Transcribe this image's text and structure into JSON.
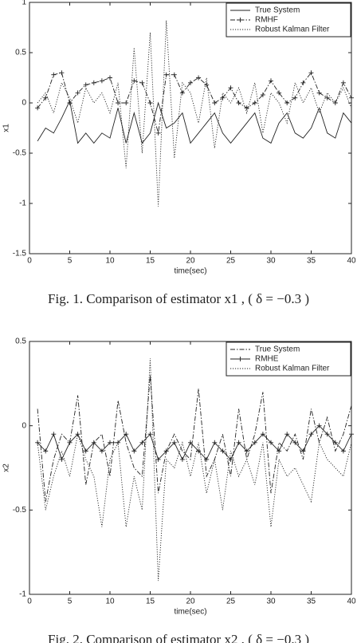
{
  "chart_data": [
    {
      "type": "line",
      "xlabel": "time(sec)",
      "ylabel": "x1",
      "caption": "Fig. 1. Comparison of estimator x1 , ( δ = −0.3 )",
      "xlim": [
        0,
        40
      ],
      "xticks": [
        0,
        5,
        10,
        15,
        20,
        25,
        30,
        35,
        40
      ],
      "ylim": [
        -1.5,
        1
      ],
      "yticks": [
        -1.5,
        -1,
        -0.5,
        0,
        0.5,
        1
      ],
      "legend": "upper right",
      "x": [
        1,
        2,
        3,
        4,
        5,
        6,
        7,
        8,
        9,
        10,
        11,
        12,
        13,
        14,
        15,
        16,
        17,
        18,
        19,
        20,
        21,
        22,
        23,
        24,
        25,
        26,
        27,
        28,
        29,
        30,
        31,
        32,
        33,
        34,
        35,
        36,
        37,
        38,
        39,
        40
      ],
      "series": [
        {
          "name": "True System",
          "color": "#222222",
          "style": "solid",
          "values": [
            -0.38,
            -0.25,
            -0.3,
            -0.15,
            0.02,
            -0.4,
            -0.3,
            -0.4,
            -0.3,
            -0.35,
            -0.05,
            -0.4,
            -0.1,
            -0.4,
            -0.3,
            0.0,
            -0.25,
            -0.2,
            -0.1,
            -0.4,
            -0.3,
            -0.2,
            -0.1,
            -0.3,
            -0.4,
            -0.3,
            -0.2,
            -0.1,
            -0.35,
            -0.4,
            -0.2,
            -0.1,
            -0.3,
            -0.35,
            -0.25,
            -0.05,
            -0.3,
            -0.35,
            -0.1,
            -0.2
          ]
        },
        {
          "name": "RMHF",
          "color": "#222222",
          "style": "dashdot",
          "marker": "+",
          "values": [
            -0.05,
            0.05,
            0.28,
            0.3,
            0.0,
            0.1,
            0.18,
            0.2,
            0.22,
            0.25,
            0.0,
            0.0,
            0.22,
            0.2,
            0.0,
            -0.3,
            0.28,
            0.28,
            0.1,
            0.2,
            0.25,
            0.18,
            0.0,
            0.05,
            0.15,
            0.0,
            -0.05,
            0.0,
            0.08,
            0.22,
            0.1,
            0.0,
            0.05,
            0.2,
            0.3,
            0.1,
            0.05,
            0.0,
            0.2,
            0.05
          ]
        },
        {
          "name": "Robust Kalman Filter",
          "color": "#222222",
          "style": "dotted",
          "values": [
            0.0,
            0.1,
            -0.1,
            0.2,
            0.05,
            -0.2,
            0.15,
            0.0,
            0.1,
            -0.1,
            0.2,
            -0.65,
            0.55,
            -0.5,
            0.7,
            -1.03,
            0.82,
            -0.55,
            0.2,
            0.1,
            -0.2,
            0.25,
            -0.45,
            0.1,
            0.0,
            0.15,
            -0.1,
            0.2,
            -0.3,
            0.1,
            0.0,
            -0.2,
            0.2,
            0.0,
            0.15,
            -0.1,
            0.1,
            0.0,
            0.15,
            -0.05
          ]
        }
      ]
    },
    {
      "type": "line",
      "xlabel": "time(sec)",
      "ylabel": "x2",
      "caption": "Fig. 2. Comparison of estimator x2 , ( δ = −0.3 )",
      "xlim": [
        0,
        40
      ],
      "xticks": [
        0,
        5,
        10,
        15,
        20,
        25,
        30,
        35,
        40
      ],
      "ylim": [
        -1,
        0.5
      ],
      "yticks": [
        -1,
        -0.5,
        0,
        0.5
      ],
      "legend": "upper right",
      "x": [
        1,
        2,
        3,
        4,
        5,
        6,
        7,
        8,
        9,
        10,
        11,
        12,
        13,
        14,
        15,
        16,
        17,
        18,
        19,
        20,
        21,
        22,
        23,
        24,
        25,
        26,
        27,
        28,
        29,
        30,
        31,
        32,
        33,
        34,
        35,
        36,
        37,
        38,
        39,
        40
      ],
      "series": [
        {
          "name": "True System",
          "color": "#222222",
          "style": "dashdot",
          "values": [
            0.1,
            -0.45,
            -0.2,
            -0.05,
            -0.1,
            0.18,
            -0.35,
            -0.1,
            -0.05,
            -0.3,
            0.15,
            -0.1,
            -0.25,
            -0.3,
            0.3,
            -0.4,
            -0.15,
            -0.05,
            -0.15,
            -0.2,
            0.22,
            -0.3,
            -0.2,
            -0.05,
            -0.3,
            0.1,
            -0.2,
            -0.05,
            0.2,
            -0.4,
            -0.1,
            -0.15,
            -0.05,
            -0.2,
            0.1,
            -0.1,
            0.05,
            -0.15,
            -0.05,
            0.12
          ]
        },
        {
          "name": "RMHE",
          "color": "#222222",
          "style": "solid",
          "marker": "+",
          "values": [
            -0.1,
            -0.15,
            -0.05,
            -0.2,
            -0.1,
            -0.05,
            -0.15,
            -0.1,
            -0.15,
            -0.1,
            -0.1,
            -0.05,
            -0.15,
            -0.1,
            -0.05,
            -0.2,
            -0.15,
            -0.1,
            -0.2,
            -0.1,
            -0.15,
            -0.2,
            -0.1,
            -0.15,
            -0.2,
            -0.1,
            -0.15,
            -0.1,
            -0.05,
            -0.1,
            -0.15,
            -0.05,
            -0.1,
            -0.15,
            -0.05,
            0.0,
            -0.05,
            -0.1,
            -0.15,
            -0.05
          ]
        },
        {
          "name": "Robust Kalman Filter",
          "color": "#222222",
          "style": "dotted",
          "values": [
            -0.1,
            -0.5,
            -0.3,
            -0.15,
            -0.3,
            -0.05,
            -0.2,
            -0.3,
            -0.6,
            -0.2,
            -0.1,
            -0.6,
            -0.3,
            -0.5,
            0.4,
            -0.92,
            -0.2,
            -0.25,
            -0.1,
            -0.3,
            -0.1,
            -0.4,
            -0.2,
            -0.5,
            -0.15,
            -0.3,
            -0.2,
            -0.35,
            -0.1,
            -0.6,
            -0.2,
            -0.3,
            -0.25,
            -0.35,
            -0.45,
            -0.1,
            -0.2,
            -0.25,
            -0.3,
            -0.1
          ]
        }
      ]
    }
  ]
}
